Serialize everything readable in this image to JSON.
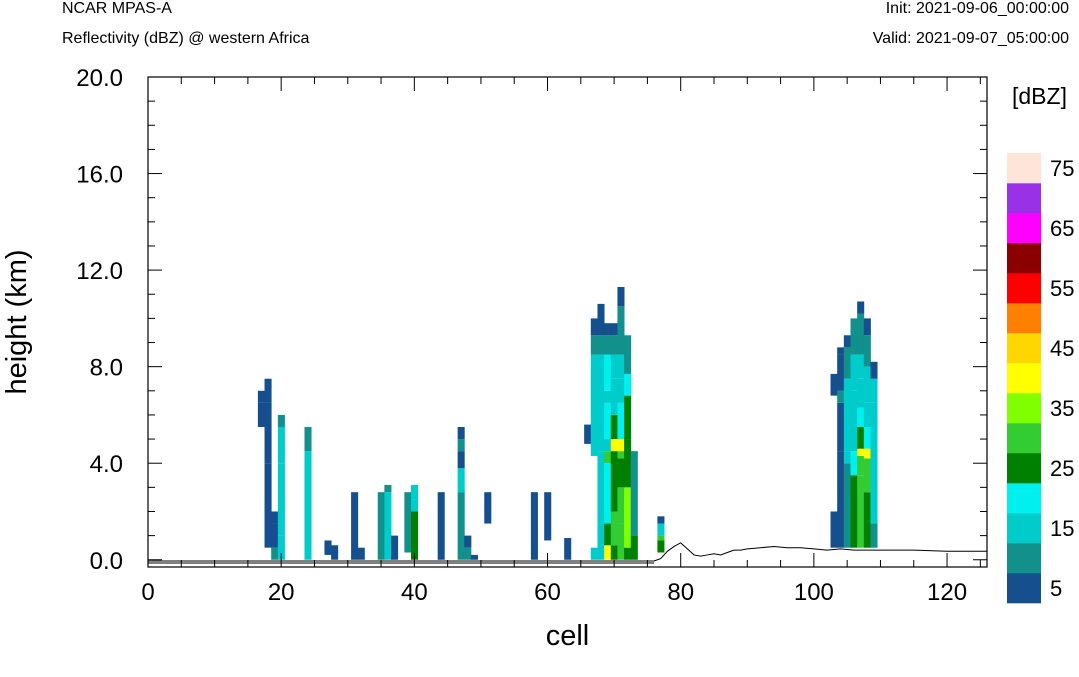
{
  "header": {
    "model": "NCAR MPAS-A",
    "field": "Reflectivity (dBZ) @ western Africa",
    "init": "Init: 2021-09-06_00:00:00",
    "valid": "Valid: 2021-09-07_05:00:00"
  },
  "chart_data": {
    "type": "heatmap",
    "xlabel": "cell",
    "ylabel": "height (km)",
    "xlim": [
      0,
      126
    ],
    "ylim": [
      -0.3,
      20.0
    ],
    "x_ticks": [
      "0",
      "20",
      "40",
      "60",
      "80",
      "100",
      "120"
    ],
    "y_ticks": [
      "0.0",
      "4.0",
      "8.0",
      "12.0",
      "16.0",
      "20.0"
    ],
    "colorbar": {
      "title": "[dBZ]",
      "tick_labels": [
        "5",
        "15",
        "25",
        "35",
        "45",
        "55",
        "65",
        "75"
      ],
      "colors": [
        "#154f8e",
        "#11908c",
        "#00cccc",
        "#00f0f0",
        "#008000",
        "#33cc33",
        "#80ff00",
        "#ffff00",
        "#ffd700",
        "#ff8000",
        "#ff0000",
        "#8b0000",
        "#ff00ff",
        "#9932e6",
        "#ffe4da"
      ]
    },
    "terrain": {
      "x": [
        0,
        76,
        77,
        78,
        79,
        80,
        81,
        82,
        83,
        84,
        85,
        86,
        87,
        88,
        89,
        90,
        92,
        94,
        96,
        98,
        100,
        102,
        104,
        106,
        108,
        110,
        115,
        120,
        126
      ],
      "height_km": [
        -0.05,
        -0.05,
        0.05,
        0.35,
        0.55,
        0.7,
        0.45,
        0.2,
        0.15,
        0.2,
        0.25,
        0.2,
        0.3,
        0.4,
        0.4,
        0.45,
        0.5,
        0.55,
        0.5,
        0.5,
        0.45,
        0.4,
        0.45,
        0.4,
        0.4,
        0.4,
        0.4,
        0.35,
        0.35
      ]
    },
    "columns": [
      {
        "x": 17,
        "bins": [
          [
            5.5,
            6.5,
            5
          ],
          [
            6.5,
            7.0,
            5
          ]
        ]
      },
      {
        "x": 18,
        "bins": [
          [
            4.0,
            6.5,
            5
          ],
          [
            6.5,
            7.5,
            5
          ],
          [
            0.5,
            4.0,
            5
          ]
        ]
      },
      {
        "x": 19,
        "bins": [
          [
            0,
            0.5,
            10
          ],
          [
            0.5,
            1.5,
            5
          ],
          [
            1.5,
            2.0,
            5
          ]
        ]
      },
      {
        "x": 20,
        "bins": [
          [
            0,
            1.0,
            15
          ],
          [
            1.0,
            4.0,
            15
          ],
          [
            4.0,
            5.5,
            15
          ],
          [
            5.5,
            6.0,
            10
          ]
        ]
      },
      {
        "x": 24,
        "bins": [
          [
            0,
            4.5,
            15
          ],
          [
            4.5,
            5.5,
            10
          ]
        ]
      },
      {
        "x": 27,
        "bins": [
          [
            0.2,
            0.8,
            5
          ]
        ]
      },
      {
        "x": 28,
        "bins": [
          [
            0,
            0.6,
            5
          ]
        ]
      },
      {
        "x": 31,
        "bins": [
          [
            0,
            2.8,
            5
          ]
        ]
      },
      {
        "x": 32,
        "bins": [
          [
            0,
            0.5,
            5
          ]
        ]
      },
      {
        "x": 35,
        "bins": [
          [
            0,
            2.8,
            10
          ]
        ]
      },
      {
        "x": 36,
        "bins": [
          [
            0,
            2.8,
            15
          ],
          [
            2.8,
            3.1,
            10
          ]
        ]
      },
      {
        "x": 37,
        "bins": [
          [
            0,
            1.0,
            5
          ]
        ]
      },
      {
        "x": 39,
        "bins": [
          [
            0.3,
            2.8,
            10
          ]
        ]
      },
      {
        "x": 40,
        "bins": [
          [
            0,
            2.0,
            25
          ],
          [
            2.0,
            2.5,
            15
          ],
          [
            2.5,
            3.1,
            15
          ]
        ]
      },
      {
        "x": 44,
        "bins": [
          [
            0,
            2.8,
            5
          ]
        ]
      },
      {
        "x": 47,
        "bins": [
          [
            0,
            2.8,
            10
          ],
          [
            2.8,
            3.8,
            15
          ],
          [
            3.8,
            4.5,
            5
          ],
          [
            4.5,
            5.0,
            10
          ],
          [
            5.0,
            5.5,
            5
          ]
        ]
      },
      {
        "x": 48,
        "bins": [
          [
            0,
            0.5,
            10
          ],
          [
            0.5,
            1.0,
            5
          ]
        ]
      },
      {
        "x": 49,
        "bins": [
          [
            0,
            0.2,
            5
          ]
        ]
      },
      {
        "x": 51,
        "bins": [
          [
            1.5,
            2.8,
            5
          ]
        ]
      },
      {
        "x": 58,
        "bins": [
          [
            0,
            2.8,
            5
          ]
        ]
      },
      {
        "x": 60,
        "bins": [
          [
            0.8,
            2.8,
            5
          ]
        ]
      },
      {
        "x": 63,
        "bins": [
          [
            0,
            0.9,
            5
          ]
        ]
      },
      {
        "x": 66,
        "bins": [
          [
            4.8,
            5.6,
            5
          ]
        ]
      },
      {
        "x": 67,
        "bins": [
          [
            0,
            0.5,
            15
          ],
          [
            4.3,
            8.5,
            15
          ],
          [
            8.5,
            9.3,
            10
          ],
          [
            9.3,
            10.0,
            5
          ]
        ]
      },
      {
        "x": 68,
        "bins": [
          [
            0,
            1.5,
            15
          ],
          [
            1.5,
            4.5,
            15
          ],
          [
            4.5,
            8.5,
            15
          ],
          [
            8.5,
            9.3,
            10
          ],
          [
            9.3,
            10.6,
            5
          ]
        ]
      },
      {
        "x": 69,
        "bins": [
          [
            0,
            0.6,
            40
          ],
          [
            0.6,
            1.5,
            25
          ],
          [
            1.5,
            4.0,
            20
          ],
          [
            4.0,
            4.5,
            30
          ],
          [
            4.5,
            5.0,
            15
          ],
          [
            5.0,
            6.5,
            20
          ],
          [
            6.5,
            7.0,
            15
          ],
          [
            7.0,
            8.5,
            20
          ],
          [
            8.5,
            9.3,
            10
          ],
          [
            9.3,
            9.8,
            5
          ]
        ]
      },
      {
        "x": 70,
        "bins": [
          [
            0,
            0.6,
            25
          ],
          [
            0.6,
            2.0,
            30
          ],
          [
            2.0,
            4.5,
            25
          ],
          [
            4.5,
            5.0,
            40
          ],
          [
            5.0,
            6.0,
            25
          ],
          [
            6.0,
            7.5,
            15
          ],
          [
            7.5,
            8.5,
            15
          ],
          [
            8.5,
            9.3,
            10
          ],
          [
            9.3,
            9.8,
            5
          ]
        ]
      },
      {
        "x": 71,
        "bins": [
          [
            0,
            1.5,
            30
          ],
          [
            1.5,
            3.0,
            30
          ],
          [
            3.0,
            4.2,
            25
          ],
          [
            4.2,
            4.5,
            30
          ],
          [
            4.5,
            5.0,
            40
          ],
          [
            5.0,
            6.5,
            20
          ],
          [
            6.5,
            7.5,
            15
          ],
          [
            7.5,
            8.5,
            15
          ],
          [
            8.5,
            10.5,
            10
          ],
          [
            10.5,
            11.3,
            5
          ]
        ]
      },
      {
        "x": 72,
        "bins": [
          [
            0,
            0.5,
            25
          ],
          [
            0.5,
            3.0,
            35
          ],
          [
            3.0,
            5.0,
            25
          ],
          [
            5.0,
            6.8,
            25
          ],
          [
            6.8,
            7.7,
            20
          ],
          [
            7.7,
            9.3,
            10
          ]
        ]
      },
      {
        "x": 73,
        "bins": [
          [
            0,
            1.0,
            25
          ],
          [
            1.0,
            4.5,
            10
          ]
        ]
      },
      {
        "x": 77,
        "bins": [
          [
            0.3,
            0.8,
            25
          ],
          [
            0.8,
            1.0,
            30
          ],
          [
            1.0,
            1.5,
            15
          ],
          [
            1.5,
            1.8,
            5
          ]
        ]
      },
      {
        "x": 103,
        "bins": [
          [
            0.5,
            2.0,
            5
          ],
          [
            6.8,
            7.7,
            5
          ]
        ]
      },
      {
        "x": 104,
        "bins": [
          [
            0.5,
            4.5,
            5
          ],
          [
            4.5,
            6.5,
            5
          ],
          [
            6.5,
            7.0,
            10
          ],
          [
            7.0,
            8.5,
            5
          ],
          [
            8.5,
            8.8,
            5
          ]
        ]
      },
      {
        "x": 105,
        "bins": [
          [
            0.5,
            4.0,
            10
          ],
          [
            4.0,
            4.5,
            15
          ],
          [
            4.5,
            7.5,
            15
          ],
          [
            7.5,
            8.8,
            10
          ],
          [
            8.8,
            9.3,
            5
          ]
        ]
      },
      {
        "x": 106,
        "bins": [
          [
            0.5,
            3.5,
            25
          ],
          [
            3.5,
            4.5,
            20
          ],
          [
            4.5,
            7.0,
            15
          ],
          [
            7.0,
            8.5,
            15
          ],
          [
            8.5,
            10.0,
            10
          ]
        ]
      },
      {
        "x": 107,
        "bins": [
          [
            0.5,
            3.5,
            30
          ],
          [
            3.5,
            4.3,
            30
          ],
          [
            4.3,
            4.6,
            40
          ],
          [
            4.6,
            5.5,
            25
          ],
          [
            5.5,
            6.3,
            20
          ],
          [
            6.3,
            7.5,
            15
          ],
          [
            7.5,
            8.5,
            15
          ],
          [
            8.5,
            10.2,
            10
          ],
          [
            10.2,
            10.7,
            5
          ]
        ]
      },
      {
        "x": 108,
        "bins": [
          [
            0.5,
            2.8,
            25
          ],
          [
            2.8,
            4.2,
            30
          ],
          [
            4.2,
            4.6,
            40
          ],
          [
            4.6,
            5.5,
            20
          ],
          [
            5.5,
            6.5,
            15
          ],
          [
            6.5,
            8.0,
            15
          ],
          [
            8.0,
            9.3,
            10
          ],
          [
            9.3,
            10.0,
            5
          ]
        ]
      },
      {
        "x": 109,
        "bins": [
          [
            0.5,
            1.5,
            10
          ],
          [
            1.5,
            6.5,
            15
          ],
          [
            6.5,
            7.5,
            15
          ],
          [
            7.5,
            8.2,
            5
          ]
        ]
      }
    ]
  }
}
